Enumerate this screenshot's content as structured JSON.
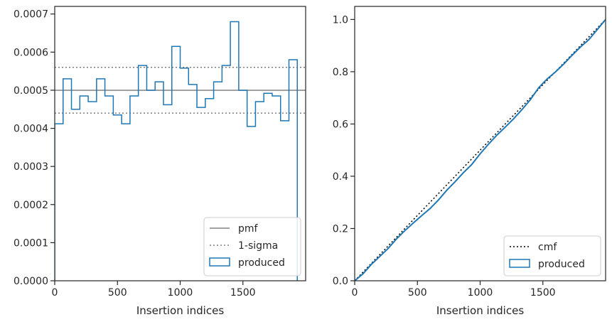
{
  "chart_data": [
    {
      "type": "histogram",
      "title": "",
      "xlabel": "Insertion indices",
      "ylabel": "",
      "xlim": [
        0,
        2000
      ],
      "ylim": [
        0,
        0.00072
      ],
      "xticks": [
        "0",
        "500",
        "1000",
        "1500"
      ],
      "yticks": [
        "0.0000",
        "0.0001",
        "0.0002",
        "0.0003",
        "0.0004",
        "0.0005",
        "0.0006",
        "0.0007"
      ],
      "grid": false,
      "legend_position": "lower-right",
      "bin_width": 66.67,
      "series": [
        {
          "name": "pmf",
          "type": "hline",
          "value": 0.0005,
          "color": "#808080",
          "style": "solid"
        },
        {
          "name": "1-sigma",
          "type": "hlines",
          "values": [
            0.00044,
            0.00056
          ],
          "color": "#808080",
          "style": "dotted"
        },
        {
          "name": "produced",
          "type": "step",
          "color": "#1f77b4",
          "values": [
            0.000412,
            0.00053,
            0.00045,
            0.000485,
            0.00047,
            0.00053,
            0.000485,
            0.000435,
            0.000412,
            0.000485,
            0.000565,
            0.0005,
            0.000522,
            0.000462,
            0.000615,
            0.000558,
            0.000515,
            0.000455,
            0.000478,
            0.000522,
            0.000565,
            0.00068,
            0.0005,
            0.000405,
            0.00047,
            0.000492,
            0.000485,
            0.00042,
            0.00058
          ]
        }
      ]
    },
    {
      "type": "line",
      "title": "",
      "xlabel": "Insertion indices",
      "ylabel": "",
      "xlim": [
        0,
        2000
      ],
      "ylim": [
        0,
        1.05
      ],
      "xticks": [
        "0",
        "500",
        "1000",
        "1500"
      ],
      "yticks": [
        "0.0",
        "0.2",
        "0.4",
        "0.6",
        "0.8",
        "1.0"
      ],
      "grid": false,
      "legend_position": "lower-right",
      "series": [
        {
          "name": "cmf",
          "color": "#000000",
          "style": "dotted",
          "x": [
            0,
            2000
          ],
          "y": [
            0,
            1.0
          ]
        },
        {
          "name": "produced",
          "color": "#1f77b4",
          "style": "solid",
          "x": [
            0,
            67,
            133,
            200,
            267,
            333,
            400,
            467,
            533,
            600,
            667,
            733,
            800,
            867,
            933,
            1000,
            1067,
            1133,
            1200,
            1267,
            1333,
            1400,
            1467,
            1533,
            1600,
            1667,
            1733,
            1800,
            1867,
            1933,
            2000
          ],
          "y": [
            0,
            0.027,
            0.063,
            0.093,
            0.124,
            0.16,
            0.192,
            0.221,
            0.249,
            0.276,
            0.309,
            0.346,
            0.379,
            0.414,
            0.445,
            0.486,
            0.523,
            0.557,
            0.588,
            0.62,
            0.655,
            0.693,
            0.739,
            0.772,
            0.799,
            0.83,
            0.863,
            0.895,
            0.923,
            0.961,
            1.0
          ]
        }
      ]
    }
  ]
}
